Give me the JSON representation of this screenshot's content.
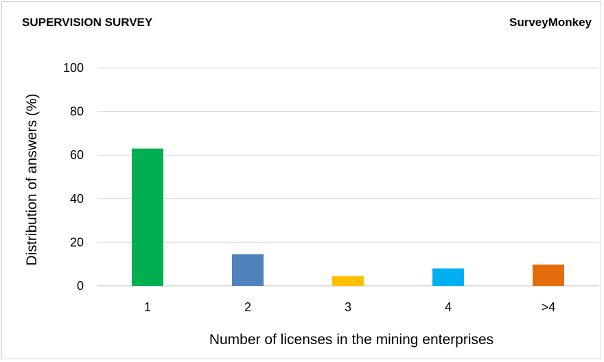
{
  "header": {
    "left_title": "SUPERVISION SURVEY",
    "right_title": "SurveyMonkey"
  },
  "chart_data": {
    "type": "bar",
    "categories": [
      "1",
      "2",
      "3",
      "4",
      ">4"
    ],
    "values": [
      63,
      14.5,
      4.5,
      8,
      9.8
    ],
    "colors": [
      "#00b050",
      "#4f81bd",
      "#ffc000",
      "#00b0f0",
      "#e46c0a"
    ],
    "xlabel": "Number of licenses in the mining enterprises",
    "ylabel": "Distribution of answers (%)",
    "ylim": [
      0,
      100
    ],
    "yticks": [
      0,
      20,
      40,
      60,
      80,
      100
    ],
    "grid": true,
    "legend": "none"
  }
}
